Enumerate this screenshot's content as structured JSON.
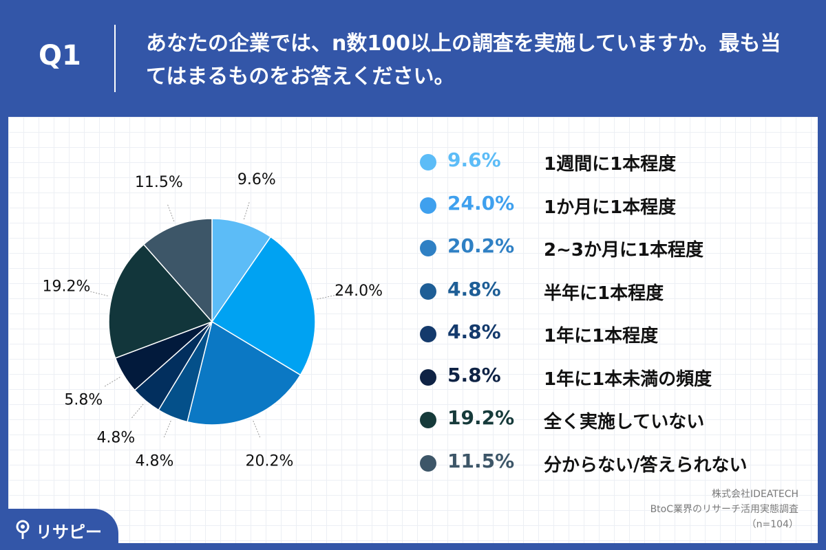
{
  "header": {
    "question_number": "Q1",
    "question_line1": "あなたの企業では、n数100以上の調査を実施していますか。",
    "question_line2": "最も当てはまるものをお答えください。"
  },
  "chart_data": {
    "type": "pie",
    "title": "",
    "categories": [
      "1週間に1本程度",
      "1か月に1本程度",
      "2~3か月に1本程度",
      "半年に1本程度",
      "1年に1本程度",
      "1年に1本未満の頻度",
      "全く実施していない",
      "分からない/答えられない"
    ],
    "values": [
      9.6,
      24.0,
      20.2,
      4.8,
      4.8,
      5.8,
      19.2,
      11.5
    ],
    "value_labels": [
      "9.6%",
      "24.0%",
      "20.2%",
      "4.8%",
      "4.8%",
      "5.8%",
      "19.2%",
      "11.5%"
    ],
    "colors": [
      "#5cbcf7",
      "#00a2f2",
      "#0b78c4",
      "#04508a",
      "#022f5e",
      "#021a3c",
      "#12363b",
      "#3d5668"
    ],
    "legend_colors": [
      "#5cbcf7",
      "#3fa0ee",
      "#2f80c4",
      "#1e5e96",
      "#143a6c",
      "#0f2345",
      "#163a3a",
      "#3d5668"
    ],
    "legend_position": "right",
    "start_angle_deg": 0,
    "direction": "clockwise"
  },
  "legend": {
    "items": [
      {
        "pct": "9.6%",
        "label": "1週間に1本程度"
      },
      {
        "pct": "24.0%",
        "label": "1か月に1本程度"
      },
      {
        "pct": "20.2%",
        "label": "2~3か月に1本程度"
      },
      {
        "pct": "4.8%",
        "label": "半年に1本程度"
      },
      {
        "pct": "4.8%",
        "label": "1年に1本程度"
      },
      {
        "pct": "5.8%",
        "label": "1年に1本未満の頻度"
      },
      {
        "pct": "19.2%",
        "label": "全く実施していない"
      },
      {
        "pct": "11.5%",
        "label": "分からない/答えられない"
      }
    ]
  },
  "source": {
    "company": "株式会社IDEATECH",
    "survey": "BtoC業界のリサーチ活用実態調査",
    "sample": "（n=104）"
  },
  "brand": {
    "name": "リサピー",
    "icon": "location-pin-icon"
  }
}
